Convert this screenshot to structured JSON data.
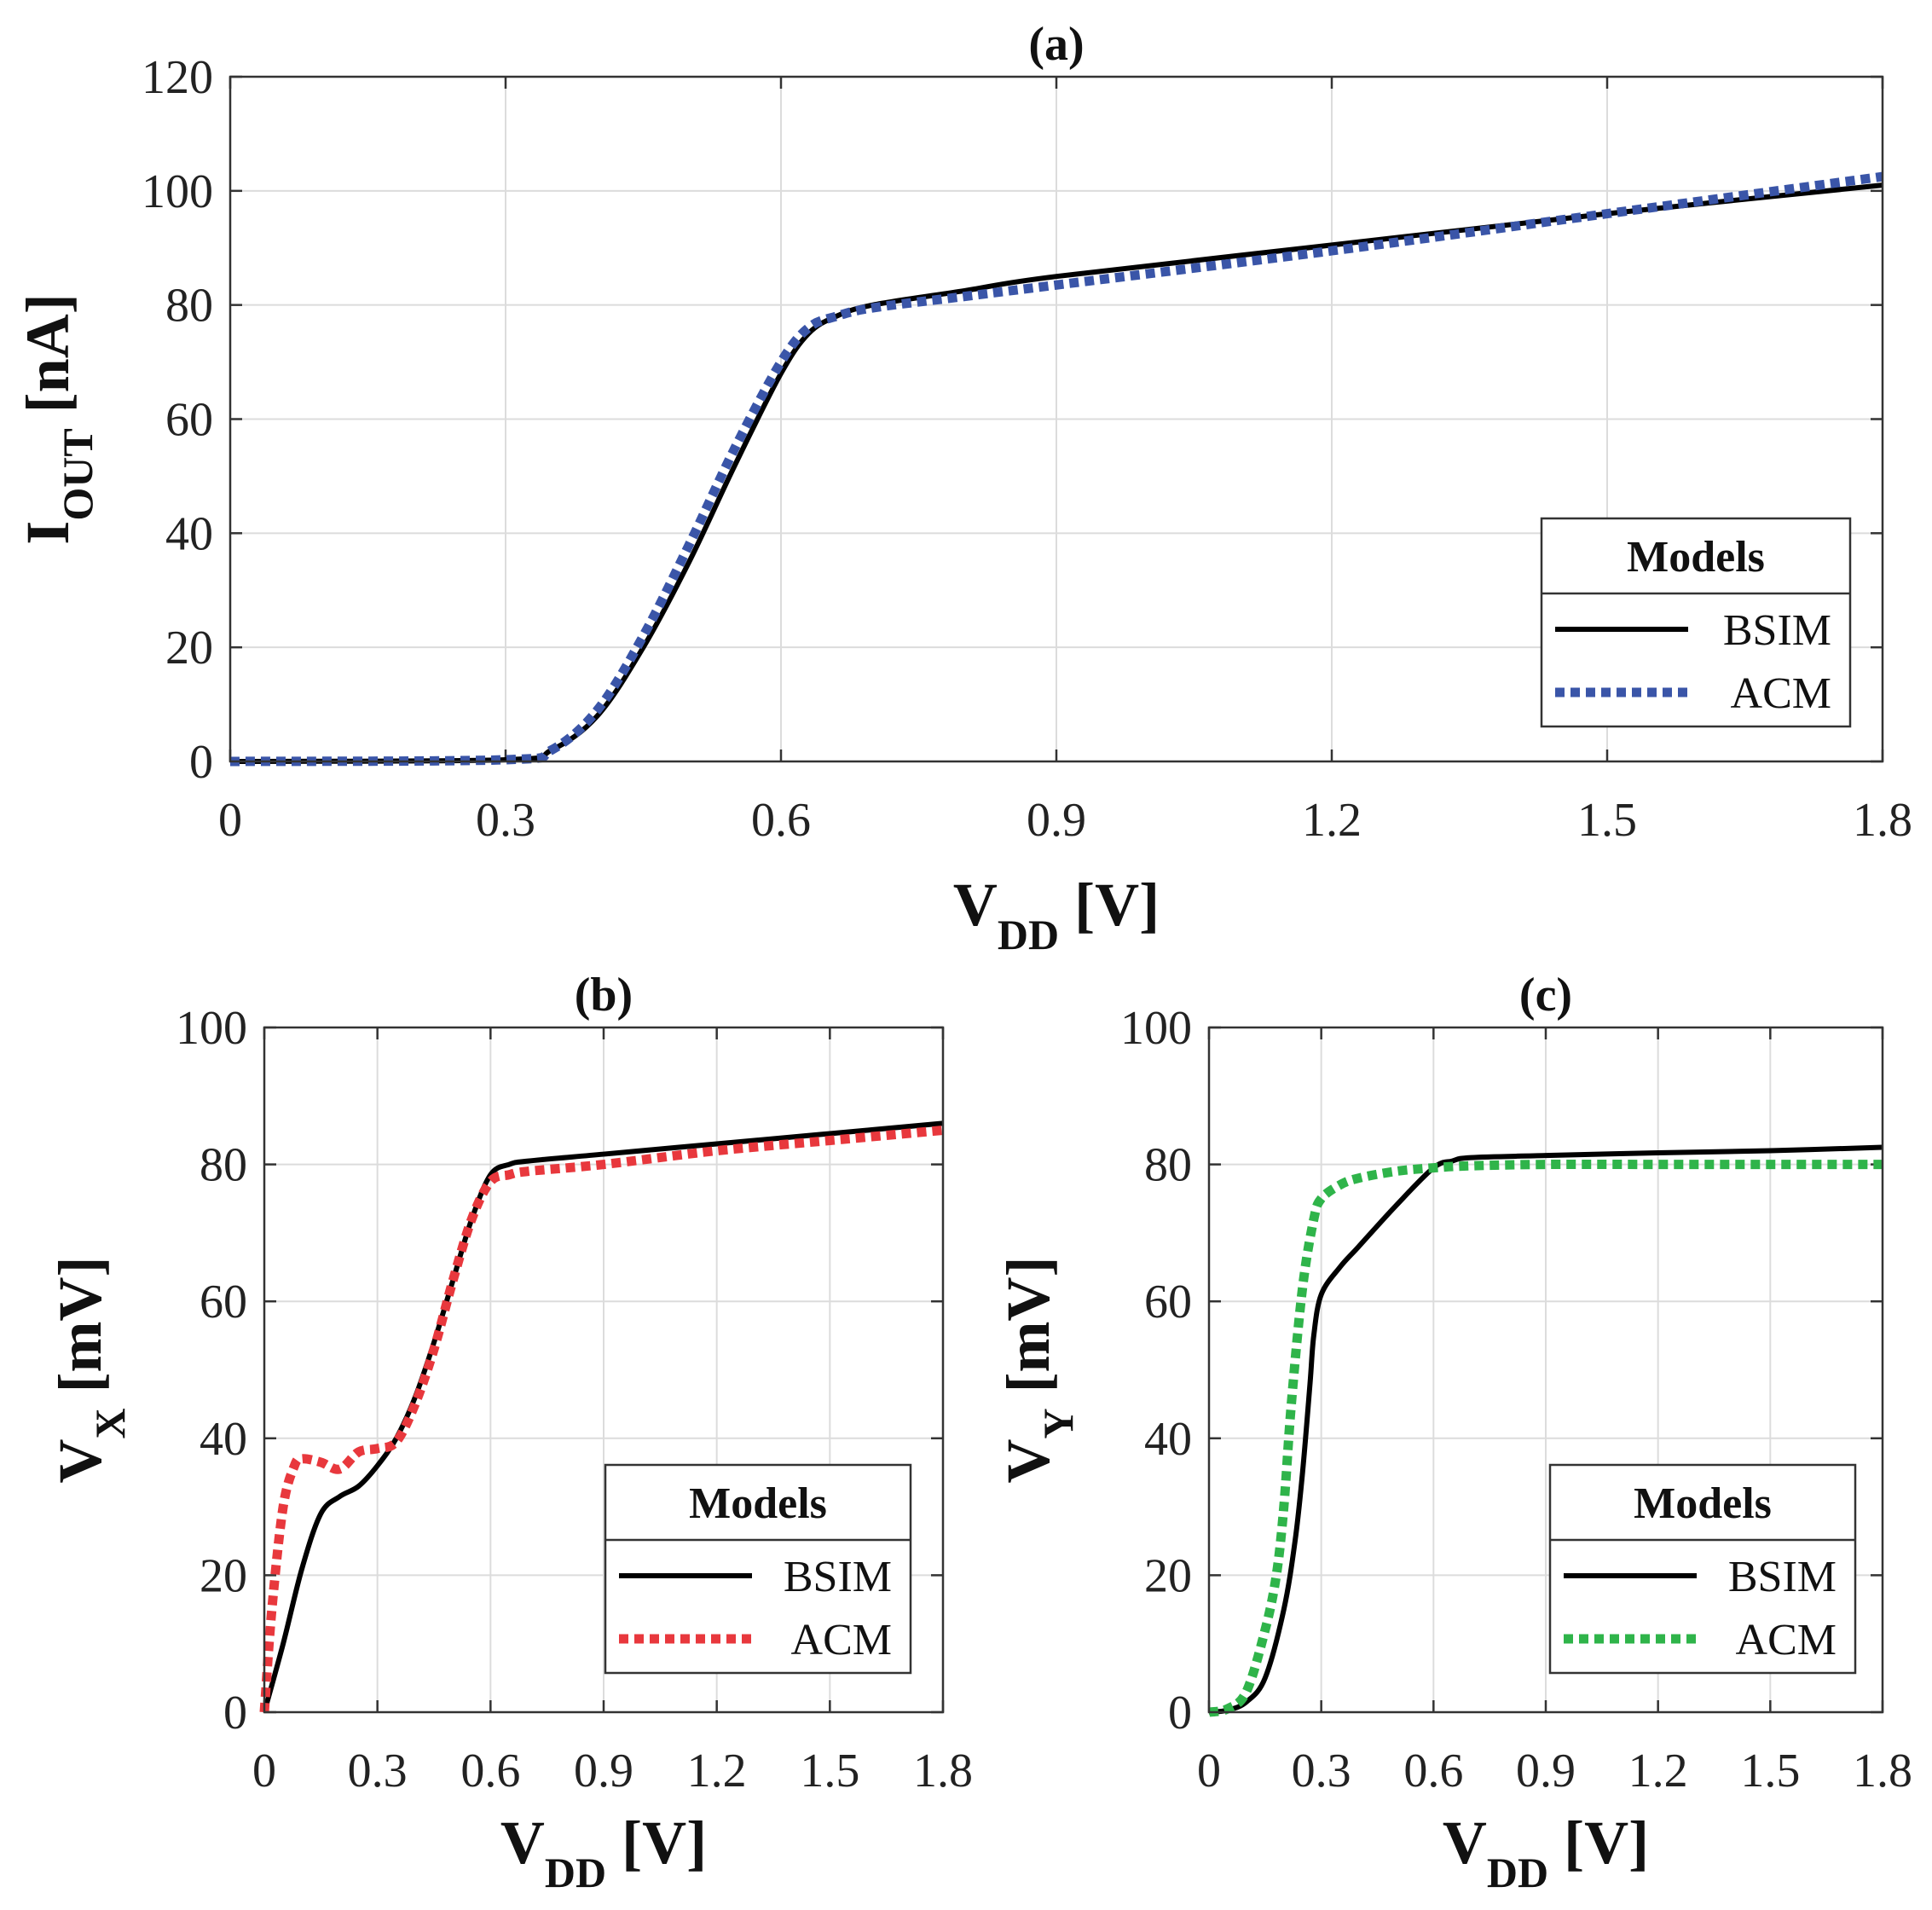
{
  "chart_data": [
    {
      "id": "a",
      "type": "line",
      "title": "(a)",
      "ylabel": {
        "main": "I",
        "sub": "OUT",
        "rest": " [nA]"
      },
      "xlabel": {
        "main": "V",
        "sub": "DD",
        "rest": " [V]"
      },
      "xlim": [
        0,
        1.8
      ],
      "ylim": [
        0,
        120
      ],
      "xticks": [
        "0",
        "0.3",
        "0.6",
        "0.9",
        "1.2",
        "1.5",
        "1.8"
      ],
      "yticks": [
        "0",
        "20",
        "40",
        "60",
        "80",
        "100",
        "120"
      ],
      "grid": true,
      "legend": {
        "title": "Models",
        "placement": "bottom-right"
      },
      "series": [
        {
          "name": "BSIM",
          "color": "#000000",
          "style": "solid",
          "x": [
            0,
            0.3,
            0.35,
            0.4,
            0.45,
            0.5,
            0.55,
            0.6,
            0.63,
            0.66,
            0.7,
            0.8,
            0.9,
            1.2,
            1.5,
            1.8
          ],
          "y": [
            0,
            0.3,
            2,
            8,
            20,
            35,
            52,
            68,
            75,
            78,
            80,
            82.5,
            85,
            90.5,
            96,
            101
          ]
        },
        {
          "name": "ACM",
          "color": "#3a55a8",
          "style": "dotted",
          "x": [
            0,
            0.3,
            0.35,
            0.4,
            0.45,
            0.5,
            0.55,
            0.6,
            0.63,
            0.66,
            0.7,
            0.8,
            0.9,
            1.2,
            1.5,
            1.8
          ],
          "y": [
            0,
            0.3,
            2,
            9,
            22,
            38,
            55,
            70,
            76,
            78,
            79.5,
            81.5,
            83.5,
            89.5,
            96,
            102.5
          ]
        }
      ]
    },
    {
      "id": "b",
      "type": "line",
      "title": "(b)",
      "ylabel": {
        "main": "V",
        "sub": "X",
        "rest": " [mV]"
      },
      "xlabel": {
        "main": "V",
        "sub": "DD",
        "rest": " [V]"
      },
      "xlim": [
        0,
        1.8
      ],
      "ylim": [
        0,
        100
      ],
      "xticks": [
        "0",
        "0.3",
        "0.6",
        "0.9",
        "1.2",
        "1.5",
        "1.8"
      ],
      "yticks": [
        "0",
        "20",
        "40",
        "60",
        "80",
        "100"
      ],
      "grid": true,
      "legend": {
        "title": "Models",
        "placement": "bottom-right"
      },
      "series": [
        {
          "name": "BSIM",
          "color": "#000000",
          "style": "solid",
          "x": [
            0,
            0.05,
            0.1,
            0.15,
            0.2,
            0.25,
            0.3,
            0.35,
            0.4,
            0.45,
            0.5,
            0.55,
            0.6,
            0.65,
            0.7,
            0.9,
            1.2,
            1.5,
            1.8
          ],
          "y": [
            0,
            10,
            21,
            29,
            31.5,
            33,
            36,
            40,
            46,
            54,
            63,
            72,
            78.5,
            80,
            80.5,
            81.5,
            83,
            84.5,
            86
          ]
        },
        {
          "name": "ACM",
          "color": "#e8383d",
          "style": "dotted",
          "x": [
            0,
            0.02,
            0.05,
            0.08,
            0.1,
            0.15,
            0.2,
            0.25,
            0.3,
            0.35,
            0.4,
            0.45,
            0.5,
            0.55,
            0.6,
            0.65,
            0.7,
            0.9,
            1.2,
            1.5,
            1.8
          ],
          "y": [
            0,
            15,
            30,
            36,
            37,
            36.5,
            35.5,
            38,
            38.5,
            39.5,
            45,
            53,
            63,
            72,
            77.5,
            78.5,
            79,
            80,
            82,
            83.5,
            85
          ]
        }
      ]
    },
    {
      "id": "c",
      "type": "line",
      "title": "(c)",
      "ylabel": {
        "main": "V",
        "sub": "Y",
        "rest": " [mV]"
      },
      "xlabel": {
        "main": "V",
        "sub": "DD",
        "rest": " [V]"
      },
      "xlim": [
        0,
        1.8
      ],
      "ylim": [
        0,
        100
      ],
      "xticks": [
        "0",
        "0.3",
        "0.6",
        "0.9",
        "1.2",
        "1.5",
        "1.8"
      ],
      "yticks": [
        "0",
        "20",
        "40",
        "60",
        "80",
        "100"
      ],
      "grid": true,
      "legend": {
        "title": "Models",
        "placement": "bottom-right"
      },
      "series": [
        {
          "name": "BSIM",
          "color": "#000000",
          "style": "solid",
          "x": [
            0,
            0.05,
            0.1,
            0.15,
            0.2,
            0.23,
            0.25,
            0.27,
            0.28,
            0.3,
            0.35,
            0.4,
            0.5,
            0.6,
            0.65,
            0.7,
            0.9,
            1.2,
            1.5,
            1.8
          ],
          "y": [
            0,
            0.3,
            1.5,
            5,
            15,
            25,
            35,
            48,
            55,
            61,
            65,
            68,
            74,
            79.5,
            80.5,
            81,
            81.3,
            81.7,
            82,
            82.5
          ]
        },
        {
          "name": "ACM",
          "color": "#2fb44a",
          "style": "dotted",
          "x": [
            0,
            0.05,
            0.1,
            0.15,
            0.18,
            0.2,
            0.22,
            0.25,
            0.28,
            0.3,
            0.35,
            0.4,
            0.5,
            0.6,
            0.7,
            0.9,
            1.2,
            1.5,
            1.8
          ],
          "y": [
            0,
            0.5,
            3,
            12,
            20,
            30,
            45,
            62,
            72,
            75,
            77,
            78,
            79,
            79.5,
            79.8,
            80,
            80,
            80,
            80
          ]
        }
      ]
    }
  ]
}
